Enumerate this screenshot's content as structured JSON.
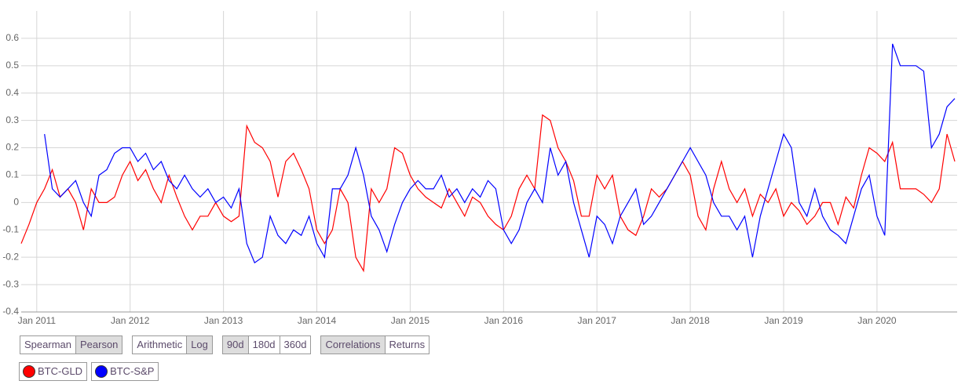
{
  "chart_data": {
    "type": "line",
    "x": [
      "2010-11",
      "2010-12",
      "2011-01",
      "2011-02",
      "2011-03",
      "2011-04",
      "2011-05",
      "2011-06",
      "2011-07",
      "2011-08",
      "2011-09",
      "2011-10",
      "2011-11",
      "2011-12",
      "2012-01",
      "2012-02",
      "2012-03",
      "2012-04",
      "2012-05",
      "2012-06",
      "2012-07",
      "2012-08",
      "2012-09",
      "2012-10",
      "2012-11",
      "2012-12",
      "2013-01",
      "2013-02",
      "2013-03",
      "2013-04",
      "2013-05",
      "2013-06",
      "2013-07",
      "2013-08",
      "2013-09",
      "2013-10",
      "2013-11",
      "2013-12",
      "2014-01",
      "2014-02",
      "2014-03",
      "2014-04",
      "2014-05",
      "2014-06",
      "2014-07",
      "2014-08",
      "2014-09",
      "2014-10",
      "2014-11",
      "2014-12",
      "2015-01",
      "2015-02",
      "2015-03",
      "2015-04",
      "2015-05",
      "2015-06",
      "2015-07",
      "2015-08",
      "2015-09",
      "2015-10",
      "2015-11",
      "2015-12",
      "2016-01",
      "2016-02",
      "2016-03",
      "2016-04",
      "2016-05",
      "2016-06",
      "2016-07",
      "2016-08",
      "2016-09",
      "2016-10",
      "2016-11",
      "2016-12",
      "2017-01",
      "2017-02",
      "2017-03",
      "2017-04",
      "2017-05",
      "2017-06",
      "2017-07",
      "2017-08",
      "2017-09",
      "2017-10",
      "2017-11",
      "2017-12",
      "2018-01",
      "2018-02",
      "2018-03",
      "2018-04",
      "2018-05",
      "2018-06",
      "2018-07",
      "2018-08",
      "2018-09",
      "2018-10",
      "2018-11",
      "2018-12",
      "2019-01",
      "2019-02",
      "2019-03",
      "2019-04",
      "2019-05",
      "2019-06",
      "2019-07",
      "2019-08",
      "2019-09",
      "2019-10",
      "2019-11",
      "2019-12",
      "2020-01",
      "2020-02",
      "2020-03",
      "2020-04",
      "2020-05",
      "2020-06",
      "2020-07",
      "2020-08",
      "2020-09",
      "2020-10",
      "2020-11"
    ],
    "series": [
      {
        "name": "BTC-GLD",
        "color": "#ff0000",
        "values": [
          -0.15,
          -0.08,
          0.0,
          0.05,
          0.12,
          0.02,
          0.05,
          0.0,
          -0.1,
          0.05,
          0.0,
          0.0,
          0.02,
          0.1,
          0.15,
          0.08,
          0.12,
          0.05,
          0.0,
          0.1,
          0.02,
          -0.05,
          -0.1,
          -0.05,
          -0.05,
          0.0,
          -0.05,
          -0.07,
          -0.05,
          0.28,
          0.22,
          0.2,
          0.15,
          0.02,
          0.15,
          0.18,
          0.12,
          0.05,
          -0.1,
          -0.15,
          -0.1,
          0.05,
          0.0,
          -0.2,
          -0.25,
          0.05,
          0.0,
          0.05,
          0.2,
          0.18,
          0.1,
          0.05,
          0.02,
          0.0,
          -0.02,
          0.05,
          0.0,
          -0.05,
          0.02,
          0.0,
          -0.05,
          -0.08,
          -0.1,
          -0.05,
          0.05,
          0.1,
          0.05,
          0.32,
          0.3,
          0.2,
          0.15,
          0.08,
          -0.05,
          -0.05,
          0.1,
          0.05,
          0.1,
          -0.05,
          -0.1,
          -0.12,
          -0.05,
          0.05,
          0.02,
          0.05,
          0.1,
          0.15,
          0.1,
          -0.05,
          -0.1,
          0.05,
          0.15,
          0.05,
          0.0,
          0.05,
          -0.05,
          0.03,
          0.0,
          0.05,
          -0.05,
          0.0,
          -0.03,
          -0.08,
          -0.05,
          0.0,
          0.0,
          -0.08,
          0.02,
          -0.02,
          0.1,
          0.2,
          0.18,
          0.15,
          0.22,
          0.05,
          0.05,
          0.05,
          0.03,
          0.0,
          0.05,
          0.25,
          0.15
        ]
      },
      {
        "name": "BTC-S&P",
        "color": "#0000ff",
        "values": [
          null,
          null,
          null,
          0.25,
          0.05,
          0.02,
          0.05,
          0.08,
          0.0,
          -0.05,
          0.1,
          0.12,
          0.18,
          0.2,
          0.2,
          0.15,
          0.18,
          0.12,
          0.15,
          0.08,
          0.05,
          0.1,
          0.05,
          0.02,
          0.05,
          0.0,
          0.02,
          -0.02,
          0.05,
          -0.15,
          -0.22,
          -0.2,
          -0.05,
          -0.12,
          -0.15,
          -0.1,
          -0.12,
          -0.05,
          -0.15,
          -0.2,
          0.05,
          0.05,
          0.1,
          0.2,
          0.1,
          -0.05,
          -0.1,
          -0.18,
          -0.08,
          0.0,
          0.05,
          0.08,
          0.05,
          0.05,
          0.1,
          0.02,
          0.05,
          0.0,
          0.05,
          0.02,
          0.08,
          0.05,
          -0.1,
          -0.15,
          -0.1,
          0.0,
          0.05,
          0.0,
          0.2,
          0.1,
          0.15,
          0.0,
          -0.1,
          -0.2,
          -0.05,
          -0.08,
          -0.15,
          -0.05,
          0.0,
          0.05,
          -0.08,
          -0.05,
          0.0,
          0.05,
          0.1,
          0.15,
          0.2,
          0.15,
          0.1,
          0.0,
          -0.05,
          -0.05,
          -0.1,
          -0.05,
          -0.2,
          -0.05,
          0.05,
          0.15,
          0.25,
          0.2,
          0.0,
          -0.05,
          0.05,
          -0.05,
          -0.1,
          -0.12,
          -0.15,
          -0.05,
          0.05,
          0.1,
          -0.05,
          -0.12,
          0.58,
          0.5,
          0.5,
          0.5,
          0.48,
          0.2,
          0.25,
          0.35,
          0.38
        ]
      }
    ],
    "xlim": [
      "2010-11",
      "2020-11"
    ],
    "xticks": [
      {
        "value": "2011-01",
        "label": "Jan 2011"
      },
      {
        "value": "2012-01",
        "label": "Jan 2012"
      },
      {
        "value": "2013-01",
        "label": "Jan 2013"
      },
      {
        "value": "2014-01",
        "label": "Jan 2014"
      },
      {
        "value": "2015-01",
        "label": "Jan 2015"
      },
      {
        "value": "2016-01",
        "label": "Jan 2016"
      },
      {
        "value": "2017-01",
        "label": "Jan 2017"
      },
      {
        "value": "2018-01",
        "label": "Jan 2018"
      },
      {
        "value": "2019-01",
        "label": "Jan 2019"
      },
      {
        "value": "2020-01",
        "label": "Jan 2020"
      }
    ],
    "ylim": [
      -0.4,
      0.7
    ],
    "yticks": [
      -0.4,
      -0.3,
      -0.2,
      -0.1,
      0,
      0.1,
      0.2,
      0.3,
      0.4,
      0.5,
      0.6
    ],
    "grid": true
  },
  "controls": [
    {
      "options": [
        "Spearman",
        "Pearson"
      ],
      "selected": "Pearson"
    },
    {
      "options": [
        "Arithmetic",
        "Log"
      ],
      "selected": "Log"
    },
    {
      "options": [
        "90d",
        "180d",
        "360d"
      ],
      "selected": "90d"
    },
    {
      "options": [
        "Correlations",
        "Returns"
      ],
      "selected": "Correlations"
    }
  ]
}
